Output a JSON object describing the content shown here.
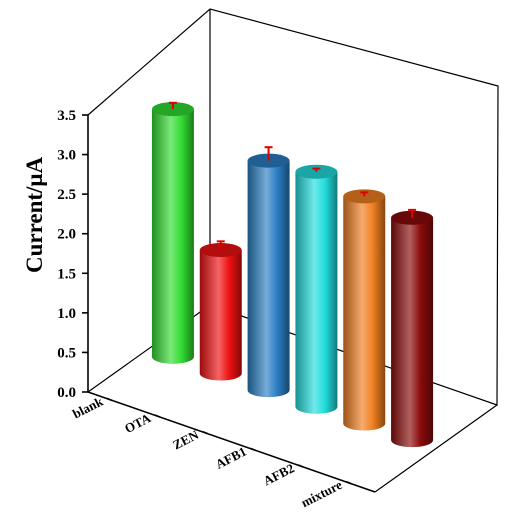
{
  "chart_data": {
    "type": "bar",
    "style": "3d-cylinder",
    "categories": [
      "blank",
      "OTA",
      "ZEN",
      "AFB1",
      "AFB2",
      "mixture"
    ],
    "values": [
      3.13,
      1.56,
      2.9,
      2.97,
      2.87,
      2.81
    ],
    "errors": [
      0.08,
      0.11,
      0.17,
      0.04,
      0.05,
      0.1
    ],
    "ylabel": "Current/μA",
    "ylim": [
      0,
      3.5
    ],
    "yticks": [
      "0.0",
      "0.5",
      "1.0",
      "1.5",
      "2.0",
      "2.5",
      "3.0",
      "3.5"
    ],
    "colors": [
      "#33dd33",
      "#ee1111",
      "#2a7fc4",
      "#22dddd",
      "#f08020",
      "#8a0a0a"
    ],
    "error_bar_color": "#dd0000",
    "grid": false
  }
}
